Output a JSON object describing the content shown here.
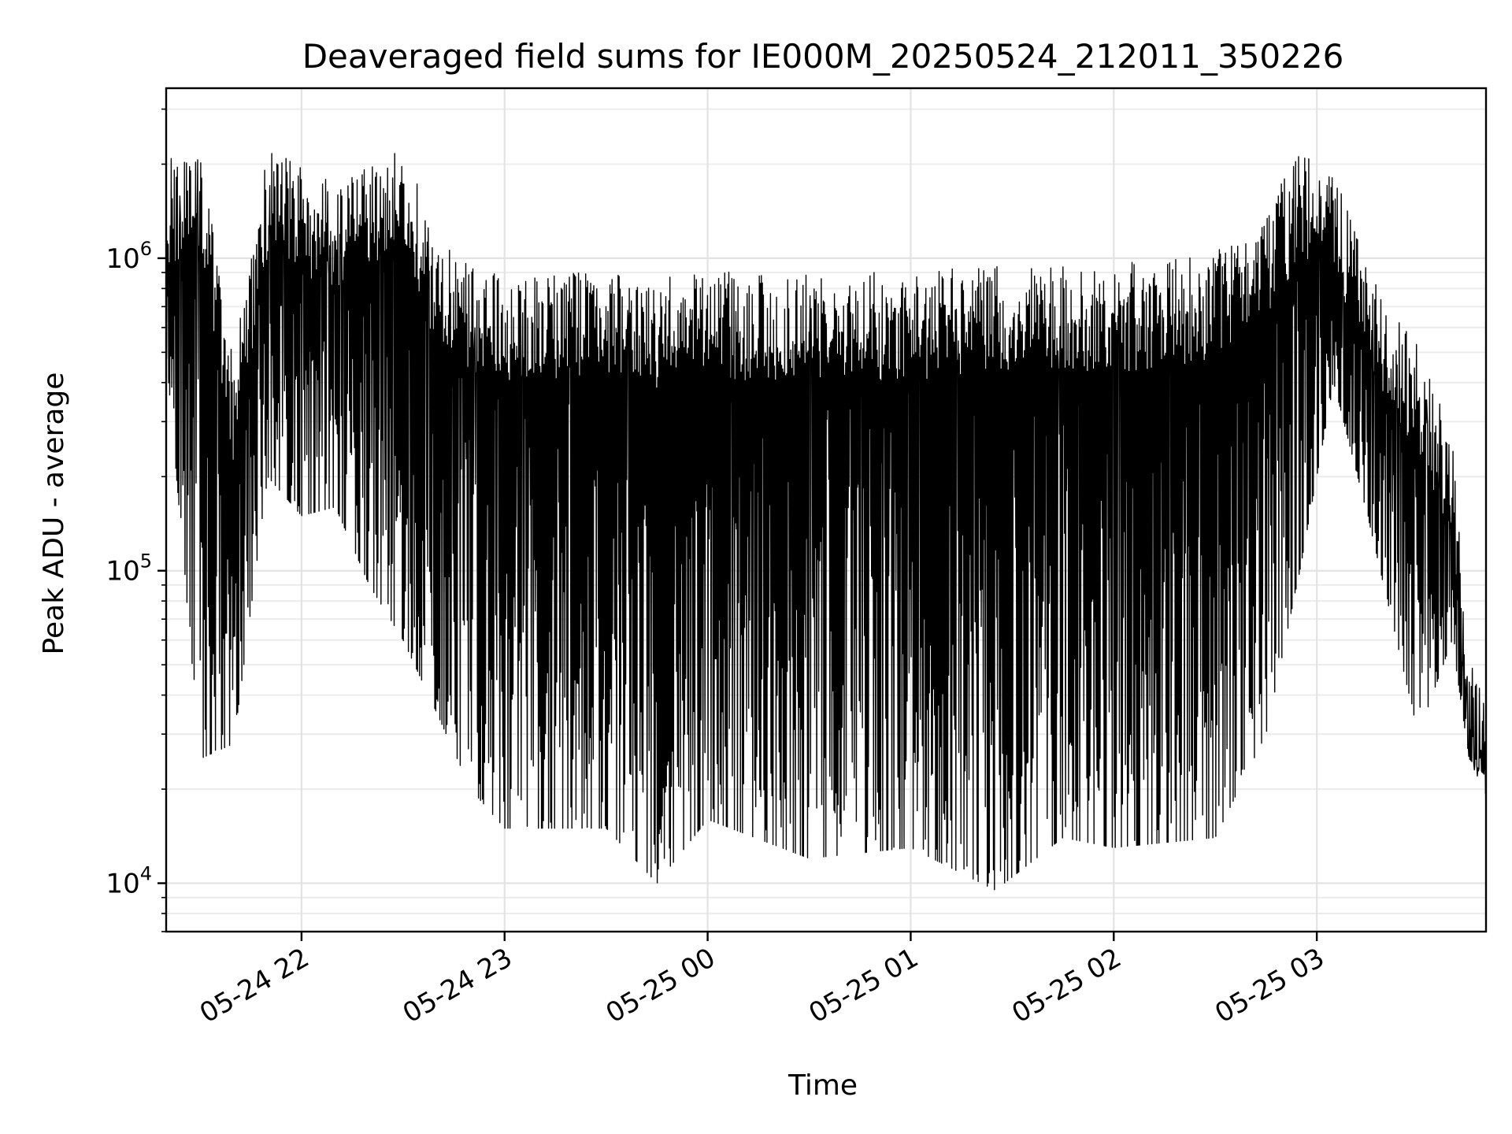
{
  "chart_data": {
    "type": "line",
    "title": "Deaveraged field sums for IE000M_20250524_212011_350226",
    "xlabel": "Time",
    "ylabel": "Peak ADU - average",
    "y_scale": "log",
    "xlim": [
      "2025-05-24 21:20",
      "2025-05-25 03:50"
    ],
    "ylim": [
      7000,
      3500000
    ],
    "grid": true,
    "x_ticks": [
      {
        "time": "2025-05-24 22:00",
        "label": "05-24 22"
      },
      {
        "time": "2025-05-24 23:00",
        "label": "05-24 23"
      },
      {
        "time": "2025-05-25 00:00",
        "label": "05-25 00"
      },
      {
        "time": "2025-05-25 01:00",
        "label": "05-25 01"
      },
      {
        "time": "2025-05-25 02:00",
        "label": "05-25 02"
      },
      {
        "time": "2025-05-25 03:00",
        "label": "05-25 03"
      }
    ],
    "y_ticks": [
      {
        "value": 10000,
        "base": "10",
        "exp": "4"
      },
      {
        "value": 100000,
        "base": "10",
        "exp": "5"
      },
      {
        "value": 1000000,
        "base": "10",
        "exp": "6"
      }
    ],
    "series": [
      {
        "color": "#000000",
        "envelope": [
          {
            "time": "2025-05-24 21:20",
            "upper": 2200000,
            "lower": 500000
          },
          {
            "time": "2025-05-24 21:30",
            "upper": 2500000,
            "lower": 25000
          },
          {
            "time": "2025-05-24 21:40",
            "upper": 500000,
            "lower": 28000
          },
          {
            "time": "2025-05-24 21:50",
            "upper": 2400000,
            "lower": 200000
          },
          {
            "time": "2025-05-24 22:00",
            "upper": 2100000,
            "lower": 150000
          },
          {
            "time": "2025-05-24 22:10",
            "upper": 1800000,
            "lower": 160000
          },
          {
            "time": "2025-05-24 22:20",
            "upper": 2200000,
            "lower": 90000
          },
          {
            "time": "2025-05-24 22:30",
            "upper": 2500000,
            "lower": 60000
          },
          {
            "time": "2025-05-24 22:40",
            "upper": 1200000,
            "lower": 35000
          },
          {
            "time": "2025-05-24 22:50",
            "upper": 1000000,
            "lower": 20000
          },
          {
            "time": "2025-05-24 23:00",
            "upper": 950000,
            "lower": 15000
          },
          {
            "time": "2025-05-24 23:30",
            "upper": 950000,
            "lower": 15000
          },
          {
            "time": "2025-05-24 23:45",
            "upper": 900000,
            "lower": 10000
          },
          {
            "time": "2025-05-25 00:00",
            "upper": 950000,
            "lower": 16000
          },
          {
            "time": "2025-05-25 00:30",
            "upper": 950000,
            "lower": 12000
          },
          {
            "time": "2025-05-25 01:00",
            "upper": 950000,
            "lower": 13000
          },
          {
            "time": "2025-05-25 01:25",
            "upper": 1000000,
            "lower": 9500
          },
          {
            "time": "2025-05-25 01:45",
            "upper": 1000000,
            "lower": 14000
          },
          {
            "time": "2025-05-25 02:00",
            "upper": 1000000,
            "lower": 13000
          },
          {
            "time": "2025-05-25 02:30",
            "upper": 1100000,
            "lower": 14000
          },
          {
            "time": "2025-05-25 02:45",
            "upper": 1500000,
            "lower": 30000
          },
          {
            "time": "2025-05-25 02:55",
            "upper": 2300000,
            "lower": 100000
          },
          {
            "time": "2025-05-25 03:05",
            "upper": 2000000,
            "lower": 400000
          },
          {
            "time": "2025-05-25 03:15",
            "upper": 1000000,
            "lower": 150000
          },
          {
            "time": "2025-05-25 03:30",
            "upper": 550000,
            "lower": 30000
          },
          {
            "time": "2025-05-25 03:40",
            "upper": 280000,
            "lower": 60000
          },
          {
            "time": "2025-05-25 03:45",
            "upper": 60000,
            "lower": 25000
          },
          {
            "time": "2025-05-25 03:50",
            "upper": 40000,
            "lower": 22000
          }
        ]
      }
    ]
  }
}
